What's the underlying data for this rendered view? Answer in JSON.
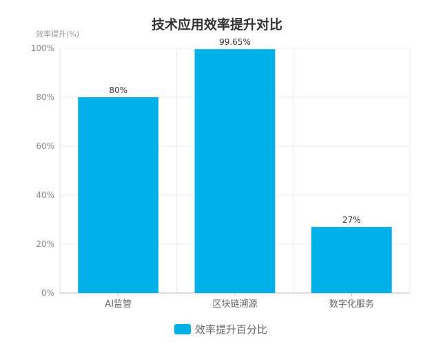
{
  "chart_data": {
    "type": "bar",
    "title": "技术应用效率提升对比",
    "ylabel": "效率提升(%)",
    "xlabel": "",
    "categories": [
      "AI监管",
      "区块链溯源",
      "数字化服务"
    ],
    "series": [
      {
        "name": "效率提升百分比",
        "values": [
          80,
          99.65,
          27
        ],
        "color": "#00b0e6"
      }
    ],
    "data_labels": [
      "80%",
      "99.65%",
      "27%"
    ],
    "ylim": [
      0,
      100
    ],
    "yticks": [
      "0%",
      "20%",
      "40%",
      "60%",
      "80%",
      "100%"
    ],
    "grid": true,
    "legend": "bottom-center"
  }
}
